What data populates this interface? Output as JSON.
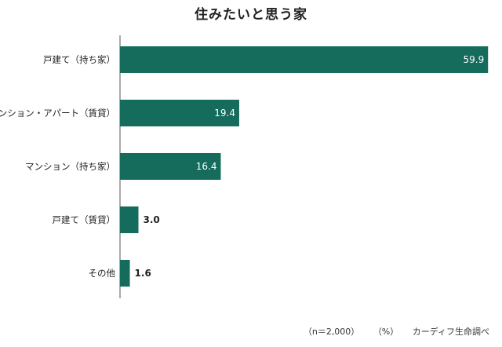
{
  "chart_data": {
    "type": "bar",
    "orientation": "horizontal",
    "title": "住みたいと思う家",
    "categories": [
      "戸建て（持ち家）",
      "マンション・アパート（賃貸）",
      "マンション（持ち家）",
      "戸建て（賃貸）",
      "その他"
    ],
    "values": [
      59.9,
      19.4,
      16.4,
      3.0,
      1.6
    ],
    "value_labels": [
      "59.9",
      "19.4",
      "16.4",
      "3.0",
      "1.6"
    ],
    "xlim": [
      0,
      60
    ],
    "grid": false,
    "bar_color": "#156b5c"
  },
  "footer": {
    "sample": "（n＝2,000）",
    "unit": "（%）",
    "source": "カーディフ生命調べ"
  }
}
